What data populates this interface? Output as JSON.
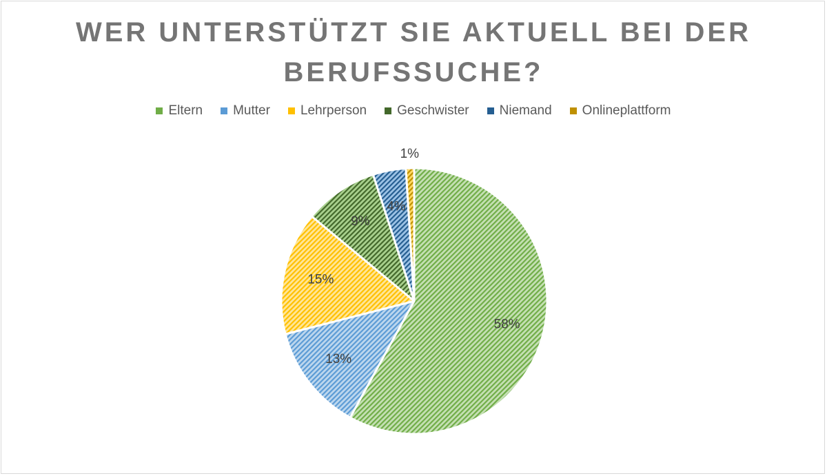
{
  "chart_data": {
    "type": "pie",
    "title_lines": [
      "WER UNTERSTÜTZT SIE AKTUELL BEI DER",
      "BERUFSSUCHE?"
    ],
    "legend_position": "top",
    "categories": [
      "Eltern",
      "Mutter",
      "Lehrperson",
      "Geschwister",
      "Niemand",
      "Onlineplattform"
    ],
    "values": [
      58,
      13,
      15,
      9,
      4,
      1
    ],
    "data_labels": [
      "58%",
      "13%",
      "15%",
      "9%",
      "4%",
      "1%"
    ],
    "colors": [
      "#70ad47",
      "#5b9bd5",
      "#ffc000",
      "#43682b",
      "#255e91",
      "#bf9000"
    ],
    "light_colors": [
      "#c5e0b4",
      "#bdd7ee",
      "#ffe699",
      "#a9d18e",
      "#9dc3e6",
      "#ffd966"
    ],
    "pattern": "diagonal-stripes"
  }
}
